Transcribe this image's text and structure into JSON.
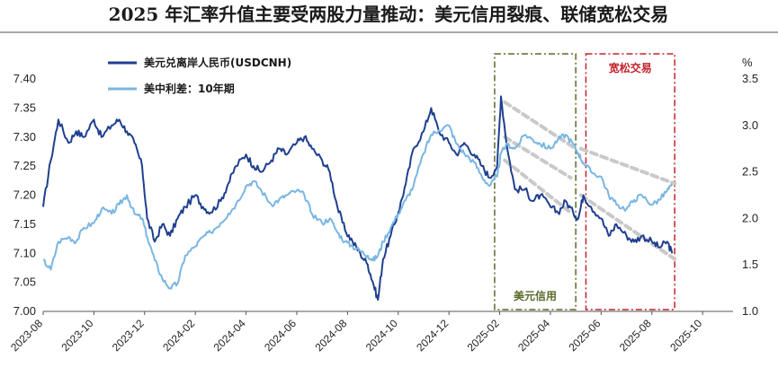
{
  "chart_data": {
    "type": "line",
    "title": "2025 年汇率升值主要受两股力量推动：美元信用裂痕、联储宽松交易",
    "y_left": {
      "ticks": [
        "7.40",
        "7.35",
        "7.30",
        "7.25",
        "7.20",
        "7.15",
        "7.10",
        "7.05",
        "7.00"
      ],
      "lim": [
        7.0,
        7.4
      ]
    },
    "y_right": {
      "unit": "%",
      "ticks": [
        "3.5",
        "3.0",
        "2.5",
        "2.0",
        "1.5",
        "1.0"
      ],
      "lim": [
        1.0,
        3.5
      ]
    },
    "x_ticks": [
      "2023-08",
      "2023-10",
      "2023-12",
      "2024-02",
      "2024-04",
      "2024-06",
      "2024-08",
      "2024-10",
      "2024-12",
      "2025-02",
      "2025-04",
      "2025-06",
      "2025-08",
      "2025-10"
    ],
    "series": [
      {
        "name": "美元兑离岸人民币(USDCNH)",
        "axis": "left",
        "color": "#1f3f8f",
        "points": [
          [
            0,
            7.18
          ],
          [
            0.3,
            7.26
          ],
          [
            0.6,
            7.33
          ],
          [
            1.0,
            7.29
          ],
          [
            1.3,
            7.31
          ],
          [
            1.6,
            7.3
          ],
          [
            2.0,
            7.33
          ],
          [
            2.3,
            7.3
          ],
          [
            2.7,
            7.32
          ],
          [
            3.0,
            7.33
          ],
          [
            3.3,
            7.31
          ],
          [
            3.6,
            7.29
          ],
          [
            3.9,
            7.25
          ],
          [
            4.1,
            7.16
          ],
          [
            4.4,
            7.12
          ],
          [
            4.7,
            7.15
          ],
          [
            5.0,
            7.13
          ],
          [
            5.3,
            7.16
          ],
          [
            5.6,
            7.18
          ],
          [
            6.0,
            7.2
          ],
          [
            6.3,
            7.18
          ],
          [
            6.6,
            7.17
          ],
          [
            7.0,
            7.19
          ],
          [
            7.3,
            7.22
          ],
          [
            7.6,
            7.25
          ],
          [
            8.0,
            7.27
          ],
          [
            8.3,
            7.25
          ],
          [
            8.6,
            7.24
          ],
          [
            9.0,
            7.26
          ],
          [
            9.3,
            7.28
          ],
          [
            9.6,
            7.27
          ],
          [
            10.0,
            7.29
          ],
          [
            10.3,
            7.3
          ],
          [
            10.6,
            7.28
          ],
          [
            11.0,
            7.26
          ],
          [
            11.3,
            7.24
          ],
          [
            11.6,
            7.18
          ],
          [
            11.9,
            7.14
          ],
          [
            12.2,
            7.12
          ],
          [
            12.5,
            7.1
          ],
          [
            12.8,
            7.08
          ],
          [
            13.0,
            7.05
          ],
          [
            13.2,
            7.02
          ],
          [
            13.4,
            7.09
          ],
          [
            13.7,
            7.13
          ],
          [
            14.0,
            7.17
          ],
          [
            14.3,
            7.22
          ],
          [
            14.6,
            7.28
          ],
          [
            15.0,
            7.31
          ],
          [
            15.3,
            7.35
          ],
          [
            15.6,
            7.31
          ],
          [
            16.0,
            7.29
          ],
          [
            16.3,
            7.27
          ],
          [
            16.6,
            7.29
          ],
          [
            17.0,
            7.27
          ],
          [
            17.3,
            7.25
          ],
          [
            17.6,
            7.23
          ],
          [
            17.9,
            7.25
          ],
          [
            18.05,
            7.37
          ],
          [
            18.3,
            7.28
          ],
          [
            18.6,
            7.21
          ],
          [
            19.0,
            7.21
          ],
          [
            19.3,
            7.19
          ],
          [
            19.6,
            7.2
          ],
          [
            20.0,
            7.18
          ],
          [
            20.3,
            7.17
          ],
          [
            20.6,
            7.19
          ],
          [
            20.9,
            7.17
          ],
          [
            21.1,
            7.16
          ],
          [
            21.3,
            7.2
          ],
          [
            21.6,
            7.18
          ],
          [
            22.0,
            7.16
          ],
          [
            22.3,
            7.13
          ],
          [
            22.6,
            7.15
          ],
          [
            23.0,
            7.13
          ],
          [
            23.3,
            7.12
          ],
          [
            23.6,
            7.13
          ],
          [
            24.0,
            7.12
          ],
          [
            24.3,
            7.11
          ],
          [
            24.6,
            7.12
          ],
          [
            24.8,
            7.1
          ]
        ]
      },
      {
        "name": "美中利差：10年期",
        "axis": "right",
        "color": "#79b6e2",
        "points": [
          [
            0,
            1.55
          ],
          [
            0.3,
            1.45
          ],
          [
            0.6,
            1.75
          ],
          [
            1.0,
            1.8
          ],
          [
            1.3,
            1.75
          ],
          [
            1.6,
            1.9
          ],
          [
            2.0,
            1.95
          ],
          [
            2.3,
            2.1
          ],
          [
            2.7,
            2.05
          ],
          [
            3.0,
            2.15
          ],
          [
            3.3,
            2.25
          ],
          [
            3.6,
            2.05
          ],
          [
            3.9,
            2.0
          ],
          [
            4.1,
            1.8
          ],
          [
            4.4,
            1.55
          ],
          [
            4.7,
            1.35
          ],
          [
            5.0,
            1.25
          ],
          [
            5.3,
            1.3
          ],
          [
            5.6,
            1.6
          ],
          [
            6.0,
            1.7
          ],
          [
            6.3,
            1.8
          ],
          [
            6.6,
            1.85
          ],
          [
            7.0,
            1.95
          ],
          [
            7.3,
            2.05
          ],
          [
            7.6,
            2.15
          ],
          [
            8.0,
            2.35
          ],
          [
            8.3,
            2.4
          ],
          [
            8.6,
            2.3
          ],
          [
            9.0,
            2.15
          ],
          [
            9.3,
            2.2
          ],
          [
            9.6,
            2.25
          ],
          [
            10.0,
            2.3
          ],
          [
            10.3,
            2.25
          ],
          [
            10.6,
            2.05
          ],
          [
            11.0,
            1.95
          ],
          [
            11.3,
            2.0
          ],
          [
            11.6,
            1.85
          ],
          [
            11.9,
            1.75
          ],
          [
            12.2,
            1.7
          ],
          [
            12.5,
            1.65
          ],
          [
            12.8,
            1.6
          ],
          [
            13.0,
            1.55
          ],
          [
            13.2,
            1.6
          ],
          [
            13.4,
            1.75
          ],
          [
            13.7,
            1.9
          ],
          [
            14.0,
            2.05
          ],
          [
            14.3,
            2.2
          ],
          [
            14.6,
            2.35
          ],
          [
            15.0,
            2.7
          ],
          [
            15.3,
            2.9
          ],
          [
            15.6,
            2.95
          ],
          [
            16.0,
            3.0
          ],
          [
            16.3,
            2.8
          ],
          [
            16.6,
            2.7
          ],
          [
            17.0,
            2.6
          ],
          [
            17.3,
            2.45
          ],
          [
            17.6,
            2.35
          ],
          [
            17.9,
            2.45
          ],
          [
            18.05,
            2.7
          ],
          [
            18.3,
            2.8
          ],
          [
            18.6,
            2.75
          ],
          [
            19.0,
            2.9
          ],
          [
            19.3,
            2.85
          ],
          [
            19.6,
            2.8
          ],
          [
            20.0,
            2.75
          ],
          [
            20.3,
            2.85
          ],
          [
            20.6,
            2.9
          ],
          [
            20.9,
            2.8
          ],
          [
            21.1,
            2.7
          ],
          [
            21.3,
            2.6
          ],
          [
            21.6,
            2.5
          ],
          [
            22.0,
            2.45
          ],
          [
            22.3,
            2.25
          ],
          [
            22.6,
            2.15
          ],
          [
            23.0,
            2.1
          ],
          [
            23.3,
            2.2
          ],
          [
            23.6,
            2.25
          ],
          [
            24.0,
            2.15
          ],
          [
            24.3,
            2.2
          ],
          [
            24.6,
            2.3
          ],
          [
            24.8,
            2.35
          ]
        ]
      }
    ],
    "annotations": [
      {
        "label": "美元信用",
        "x_start": 17.8,
        "x_end": 21.0,
        "style": "dash-dot",
        "color": "#5a6a2a"
      },
      {
        "label": "宽松交易",
        "x_start": 21.4,
        "x_end": 24.9,
        "style": "dash-dot",
        "color": "#c0232b"
      }
    ],
    "legend_placement": "top-left",
    "grid": false
  }
}
